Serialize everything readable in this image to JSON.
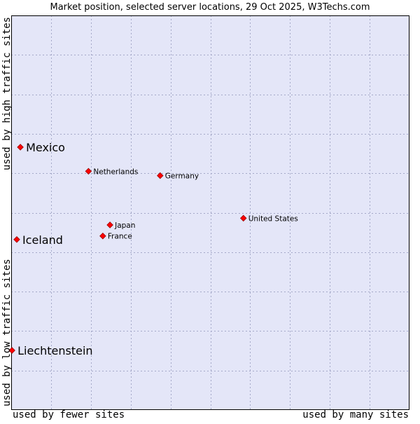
{
  "chart_data": {
    "type": "scatter",
    "title": "Market position, selected server locations, 29 Oct 2025, W3Techs.com",
    "xlabel_left": "used by fewer sites",
    "xlabel_right": "used by many sites",
    "ylabel_bottom": "used by low traffic sites",
    "ylabel_top": "used by high traffic sites",
    "xlim": [
      0,
      100
    ],
    "ylim": [
      0,
      100
    ],
    "grid": true,
    "colors": {
      "plot_background": "#e4e6f8",
      "grid": "#a4a8c8",
      "border": "#000000",
      "marker": "#ff0000",
      "marker_edge": "#990000"
    },
    "points": [
      {
        "name": "Mexico",
        "x": 2.3,
        "y": 66.6,
        "size": "large"
      },
      {
        "name": "Netherlands",
        "x": 19.4,
        "y": 60.5,
        "size": "small"
      },
      {
        "name": "Germany",
        "x": 37.4,
        "y": 59.4,
        "size": "small"
      },
      {
        "name": "United States",
        "x": 58.3,
        "y": 48.6,
        "size": "small"
      },
      {
        "name": "Japan",
        "x": 24.8,
        "y": 46.9,
        "size": "small"
      },
      {
        "name": "France",
        "x": 23.0,
        "y": 44.1,
        "size": "small"
      },
      {
        "name": "Iceland",
        "x": 1.4,
        "y": 43.2,
        "size": "large"
      },
      {
        "name": "Liechtenstein",
        "x": 0.2,
        "y": 15.1,
        "size": "large"
      }
    ]
  }
}
